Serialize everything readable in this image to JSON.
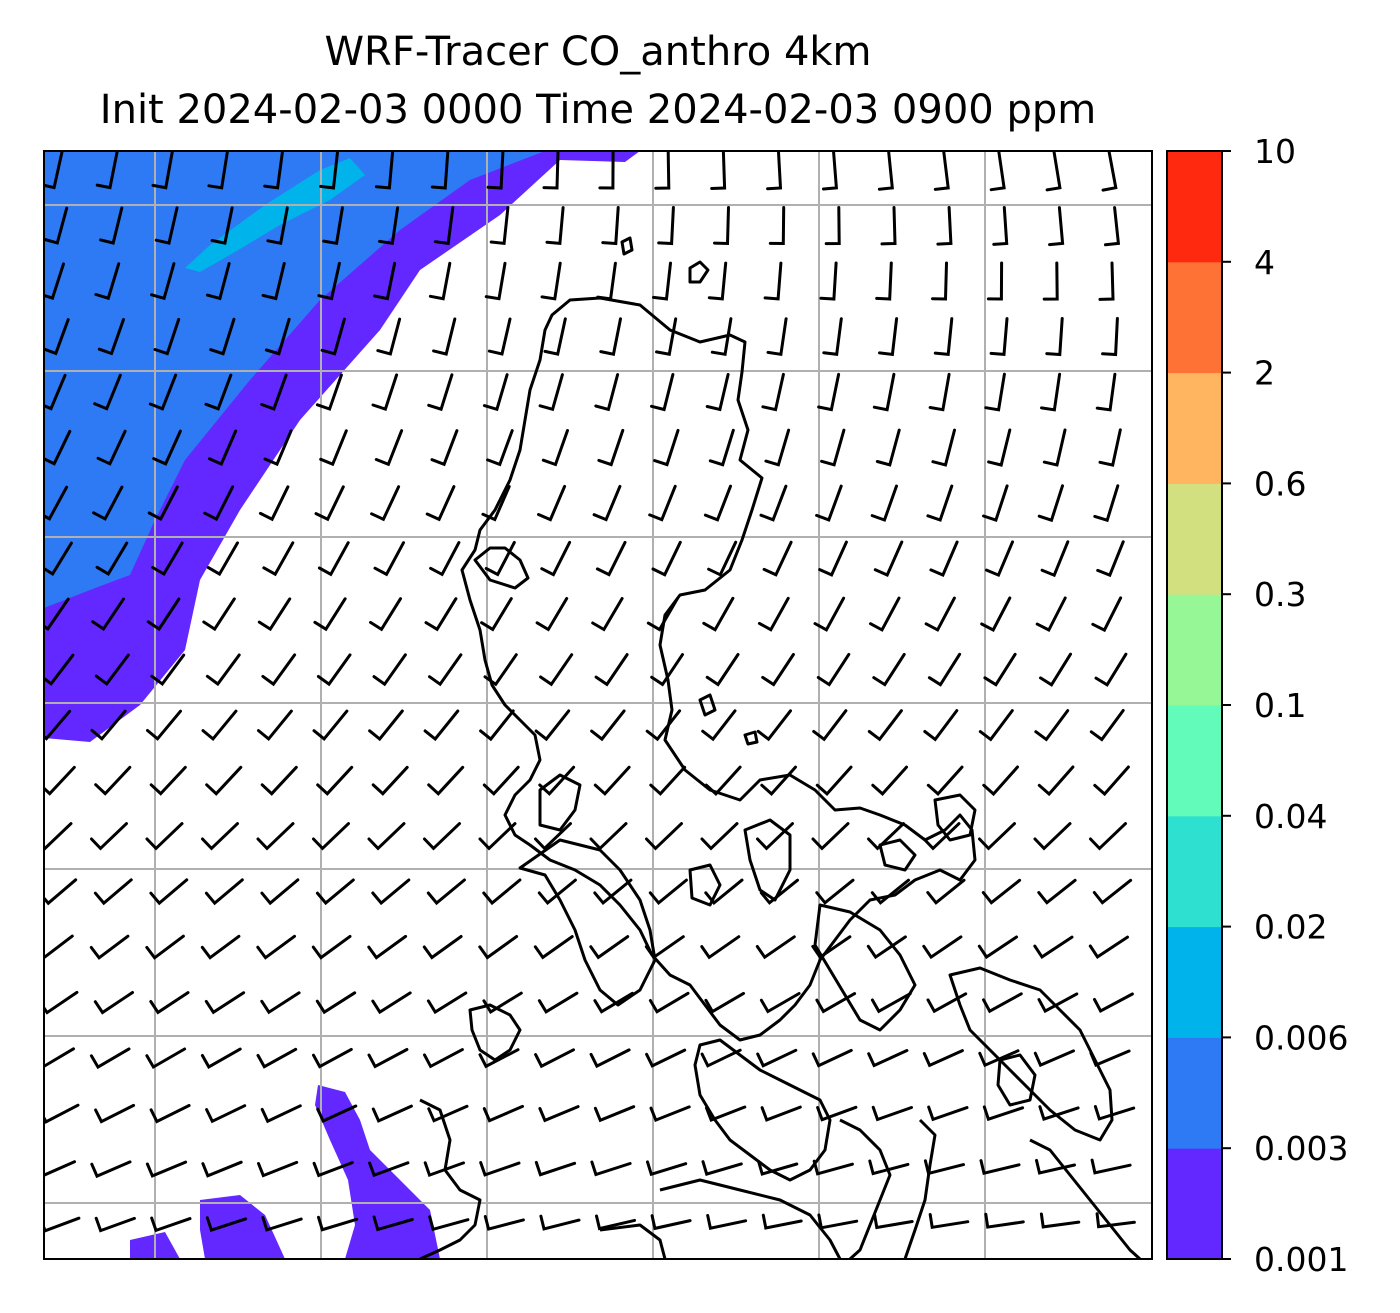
{
  "title_line1": "WRF-Tracer CO_anthro 4km",
  "title_line2": "Init 2024-02-03 0000 Time 2024-02-03 0900 ppm",
  "chart_data": {
    "type": "heatmap",
    "title": "WRF-Tracer CO_anthro 4km\nInit 2024-02-03 0000 Time 2024-02-03 0900 ppm",
    "units": "ppm",
    "colorbar": {
      "levels": [
        0.001,
        0.003,
        0.006,
        0.02,
        0.04,
        0.1,
        0.3,
        0.6,
        2,
        4,
        10
      ],
      "tick_labels": [
        "0.001",
        "0.003",
        "0.006",
        "0.02",
        "0.04",
        "0.1",
        "0.3",
        "0.6",
        "2",
        "4",
        "10"
      ],
      "colors": [
        "#6228ff",
        "#2e79f4",
        "#00b3ea",
        "#2ee0cf",
        "#62fbb9",
        "#96f797",
        "#d2e07f",
        "#ffb460",
        "#ff7236",
        "#ff2910"
      ]
    },
    "regions": [
      {
        "band": "0.003-0.006",
        "location": "upper-left"
      },
      {
        "band": "0.006-0.02",
        "location": "upper-left strip"
      },
      {
        "band": "0.001-0.003",
        "location": "diagonal band upper-left and patches lower-left"
      }
    ],
    "overlays": [
      "wind barbs",
      "coastlines",
      "lat/lon gridlines"
    ],
    "grid": true
  }
}
